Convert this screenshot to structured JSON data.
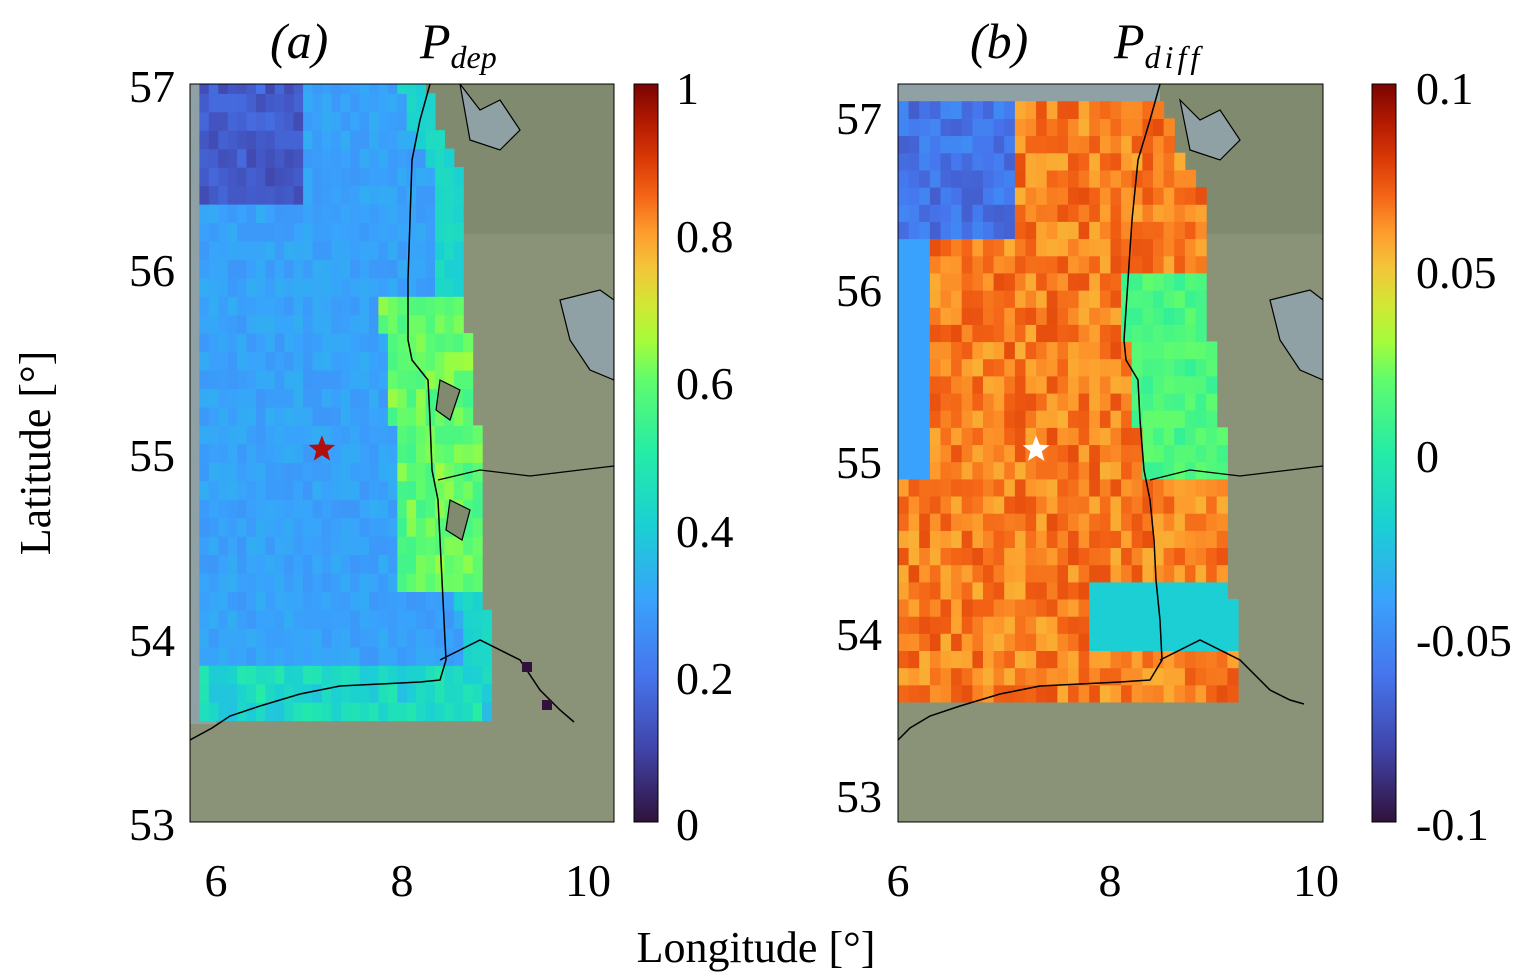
{
  "figure": {
    "xlabel": "Longitude [°]",
    "ylabel": "Latitude [°]"
  },
  "panels": [
    {
      "label": "(a)",
      "title_main": "P",
      "title_sub": "dep",
      "xticks": [
        "6",
        "8",
        "10"
      ],
      "yticks": [
        "57",
        "56",
        "55",
        "54",
        "53"
      ],
      "xlim": [
        5.8,
        10.3
      ],
      "ylim": [
        53,
        57
      ],
      "colorbar": {
        "ticks": [
          "1",
          "0.8",
          "0.6",
          "0.4",
          "0.2",
          "0"
        ],
        "range": [
          0,
          1
        ],
        "colormap": "turbo"
      },
      "star": {
        "lon": 7.2,
        "lat": 55.02,
        "color": "#b01010"
      }
    },
    {
      "label": "(b)",
      "title_main": "P",
      "title_sub": "diff",
      "xticks": [
        "6",
        "8",
        "10"
      ],
      "yticks": [
        "57",
        "56",
        "55",
        "54",
        "53"
      ],
      "xlim": [
        6.0,
        10.0
      ],
      "ylim": [
        52.85,
        57.15
      ],
      "colorbar": {
        "ticks": [
          "0.1",
          "0.05",
          "0",
          "-0.05",
          "-0.1"
        ],
        "range": [
          -0.1,
          0.1
        ],
        "colormap": "turbo"
      },
      "star": {
        "lon": 7.3,
        "lat": 55.02,
        "color": "#ffffff"
      }
    }
  ],
  "colors": {
    "land": "#8a9278",
    "water_mask": "#8fa1a5",
    "coastline": "#000000"
  }
}
